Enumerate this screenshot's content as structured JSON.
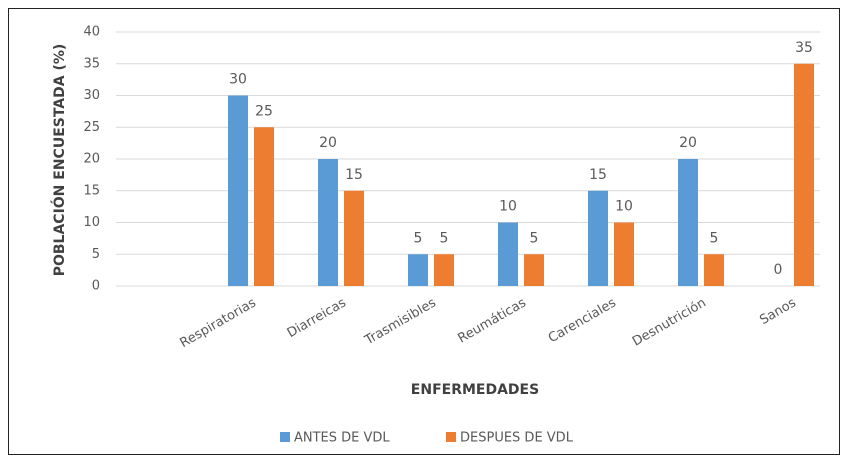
{
  "chart_data": {
    "type": "bar",
    "x_label": "ENFERMEDADES",
    "y_label": "POBLACIÓN ENCUESTADA (%)",
    "categories": [
      null,
      "Respiratorias",
      "Diarreicas",
      "Trasmisibles",
      "Reumáticas",
      "Carenciales",
      "Desnutrición",
      "Sanos"
    ],
    "series": [
      {
        "name": "ANTES DE VDL",
        "color": "#5b9bd5",
        "values": [
          null,
          30,
          20,
          5,
          10,
          15,
          20,
          0
        ]
      },
      {
        "name": "DESPUES DE VDL",
        "color": "#ed7d31",
        "values": [
          null,
          25,
          15,
          5,
          5,
          10,
          5,
          35
        ]
      }
    ],
    "ylim": [
      0,
      40
    ],
    "yticks": [
      0,
      5,
      10,
      15,
      20,
      25,
      30,
      35,
      40
    ],
    "grid": true,
    "legend": "bottom"
  }
}
